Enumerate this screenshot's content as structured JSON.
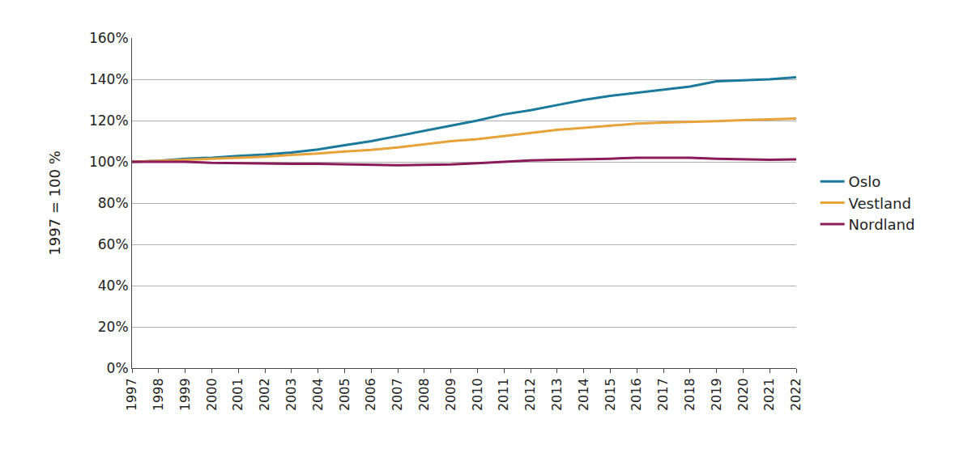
{
  "chart_data": {
    "type": "line",
    "y_label": "1997 = 100 %",
    "x": [
      1997,
      1998,
      1999,
      2000,
      2001,
      2002,
      2003,
      2004,
      2005,
      2006,
      2007,
      2008,
      2009,
      2010,
      2011,
      2012,
      2013,
      2014,
      2015,
      2016,
      2017,
      2018,
      2019,
      2020,
      2021,
      2022
    ],
    "xlim": [
      1997,
      2022
    ],
    "xticks": [
      1997,
      1998,
      1999,
      2000,
      2001,
      2002,
      2003,
      2004,
      2005,
      2006,
      2007,
      2008,
      2009,
      2010,
      2011,
      2012,
      2013,
      2014,
      2015,
      2016,
      2017,
      2018,
      2019,
      2020,
      2021,
      2022
    ],
    "ylim": [
      0,
      160
    ],
    "yticks": [
      {
        "value": 0,
        "label": "0%"
      },
      {
        "value": 20,
        "label": "20%"
      },
      {
        "value": 40,
        "label": "40%"
      },
      {
        "value": 60,
        "label": "60%"
      },
      {
        "value": 80,
        "label": "80%"
      },
      {
        "value": 100,
        "label": "100%"
      },
      {
        "value": 120,
        "label": "120%"
      },
      {
        "value": 140,
        "label": "140%"
      },
      {
        "value": 160,
        "label": "160%"
      }
    ],
    "grid": true,
    "legend": "right",
    "series": [
      {
        "name": "Oslo",
        "color": "#1b7a9b",
        "values": [
          100,
          100.5,
          101.5,
          102,
          102.8,
          103.5,
          104.5,
          106,
          108,
          110,
          112.5,
          115,
          117.5,
          120,
          123,
          125,
          127.5,
          130,
          132,
          133.5,
          135,
          136.5,
          139,
          139.5,
          140,
          141
        ]
      },
      {
        "name": "Vestland",
        "color": "#e8a23a",
        "values": [
          100,
          100.5,
          101,
          101.5,
          102,
          102.5,
          103.3,
          104,
          105,
          105.8,
          107,
          108.5,
          110,
          111,
          112.5,
          114,
          115.5,
          116.5,
          117.5,
          118.5,
          119,
          119.3,
          119.7,
          120.2,
          120.5,
          121
        ]
      },
      {
        "name": "Nordland",
        "color": "#8b1a5a",
        "values": [
          100,
          100,
          100,
          99.5,
          99.3,
          99,
          99,
          99,
          98.7,
          98.5,
          98.3,
          98.5,
          98.7,
          99.3,
          100,
          100.7,
          101,
          101.2,
          101.5,
          102,
          102,
          102,
          101.5,
          101.3,
          101,
          101.2
        ]
      }
    ]
  }
}
